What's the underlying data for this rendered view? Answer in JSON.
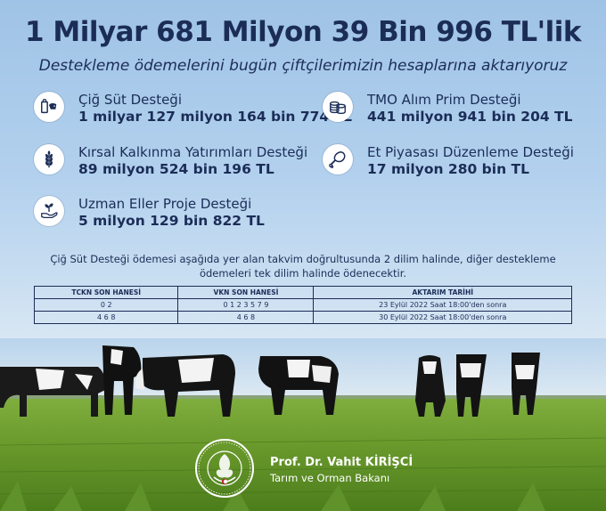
{
  "header": {
    "title": "1 Milyar 681 Milyon 39 Bin 996 TL'lik",
    "subtitle": "Destekleme ödemelerini bugün çiftçilerimizin hesaplarına aktarıyoruz"
  },
  "supports": [
    {
      "label": "Çiğ Süt Desteği",
      "value": "1 milyar 127 milyon 164 bin 774 TL",
      "icon": "milk-cow-icon"
    },
    {
      "label": "TMO Alım Prim Desteği",
      "value": "441 milyon 941 bin 204 TL",
      "icon": "coin-stack-icon"
    },
    {
      "label": "Kırsal Kalkınma Yatırımları Desteği",
      "value": "89 milyon 524 bin 196 TL",
      "icon": "wheat-icon"
    },
    {
      "label": "Et Piyasası Düzenleme Desteği",
      "value": "17 milyon 280 bin TL",
      "icon": "meat-leg-icon"
    },
    {
      "label": "Uzman Eller Proje Desteği",
      "value": "5 milyon 129 bin 822 TL",
      "icon": "hand-sprout-icon"
    }
  ],
  "note": "Çiğ Süt Desteği ödemesi aşağıda yer alan takvim doğrultusunda 2 dilim halinde, diğer destekleme ödemeleri tek dilim halinde ödenecektir.",
  "schedule": {
    "headers": [
      "TCKN SON HANESİ",
      "VKN SON HANESİ",
      "AKTARIM TARİHİ"
    ],
    "rows": [
      [
        "0 2",
        "0 1 2 3 5 7 9",
        "23 Eylül 2022 Saat 18:00'den sonra"
      ],
      [
        "4 6 8",
        "4 6 8",
        "30 Eylül 2022 Saat 18:00'den sonra"
      ]
    ]
  },
  "signature": {
    "name": "Prof. Dr. Vahit KİRİŞCİ",
    "role": "Tarım ve Orman Bakanı"
  }
}
